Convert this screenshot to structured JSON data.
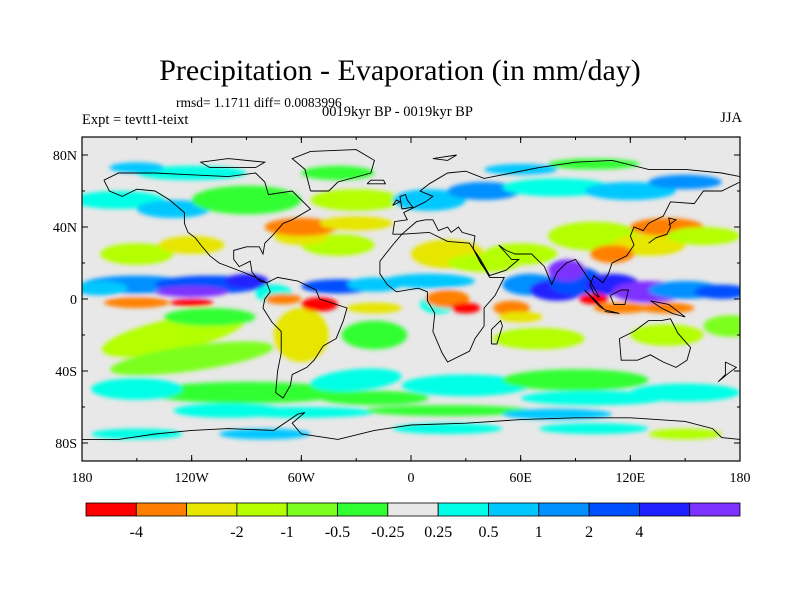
{
  "title": "Precipitation - Evaporation (in mm/day)",
  "stats": "rmsd= 1.1711 diff= 0.0083996",
  "experiment": "Expt = tevtt1-teixt",
  "period": "0019kyr BP - 0019kyr BP",
  "season": "JJA",
  "lat_ticks": [
    {
      "label": "80N",
      "lat": 80
    },
    {
      "label": "40N",
      "lat": 40
    },
    {
      "label": "0",
      "lat": 0
    },
    {
      "label": "40S",
      "lat": -40
    },
    {
      "label": "80S",
      "lat": -80
    }
  ],
  "lon_ticks": [
    {
      "label": "180",
      "lon": -180
    },
    {
      "label": "120W",
      "lon": -120
    },
    {
      "label": "60W",
      "lon": -60
    },
    {
      "label": "0",
      "lon": 0
    },
    {
      "label": "60E",
      "lon": 60
    },
    {
      "label": "120E",
      "lon": 120
    },
    {
      "label": "180",
      "lon": 180
    }
  ],
  "colorbar": {
    "colors": [
      "#ff0000",
      "#ff8000",
      "#e6e600",
      "#b4ff00",
      "#7cff1e",
      "#32ff32",
      "#e8e8e8",
      "#00ffe6",
      "#00c8ff",
      "#0090ff",
      "#0050ff",
      "#2020ff",
      "#7d32ff"
    ],
    "labels": [
      "-4",
      "-2",
      "-1",
      "-0.5",
      "-0.25",
      "0.25",
      "0.5",
      "1",
      "2",
      "4"
    ],
    "label_after_box": [
      1,
      3,
      4,
      5,
      6,
      7,
      8,
      9,
      10,
      11
    ]
  },
  "fill_colors": {
    "neutral": "#e8e8e8",
    "very_dry": "#ff0000",
    "dry": "#ff8000",
    "yellow": "#e6e600",
    "light_green": "#b4ff00",
    "green": "#7cff1e",
    "bright_green": "#32ff32",
    "cyan": "#00ffe6",
    "light_blue": "#00c8ff",
    "blue": "#0090ff",
    "deep_blue": "#0050ff",
    "indigo": "#2020ff",
    "purple": "#7d32ff"
  }
}
